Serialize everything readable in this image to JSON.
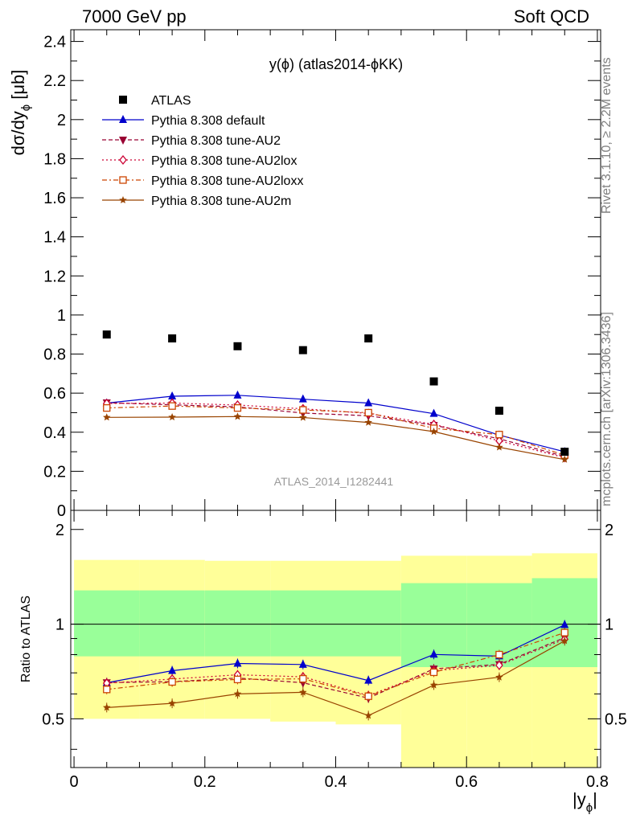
{
  "header": {
    "left": "7000 GeV pp",
    "right": "Soft QCD"
  },
  "side_labels": {
    "rivet": "Rivet 3.1.10, ≥ 2.2M events",
    "mcplots": "mcplots.cern.ch [arXiv:1306.3436]"
  },
  "chart_data": {
    "type": "scatter",
    "title": "y(ϕ) (atlas2014-ϕKK)",
    "analysis_label": "ATLAS_2014_I1282441",
    "ylabel": "dσ/dy",
    "ylabel_sub": "ϕ",
    "ylabel_unit": "[μb]",
    "ratio_ylabel": "Ratio to ATLAS",
    "xlabel": "|y",
    "xlabel_sub": "ϕ",
    "xlabel_end": "|",
    "xlim": [
      -0.005,
      0.805
    ],
    "ylim": [
      0,
      2.46
    ],
    "ratio_ylim": [
      0.35,
      2.3
    ],
    "x_ticks": [
      "0",
      "0.2",
      "0.4",
      "0.6",
      "0.8"
    ],
    "y_ticks": [
      "0",
      "0.2",
      "0.4",
      "0.6",
      "0.8",
      "1",
      "1.2",
      "1.4",
      "1.6",
      "1.8",
      "2",
      "2.2",
      "2.4"
    ],
    "ratio_ticks": [
      "0.5",
      "1",
      "2"
    ],
    "x": [
      0.05,
      0.15,
      0.25,
      0.35,
      0.45,
      0.55,
      0.65,
      0.75
    ],
    "bin_edges": [
      0.0,
      0.1,
      0.2,
      0.3,
      0.4,
      0.5,
      0.6,
      0.7,
      0.8
    ],
    "data_name": "ATLAS",
    "data_values": [
      0.9,
      0.88,
      0.84,
      0.82,
      0.88,
      0.66,
      0.51,
      0.3
    ],
    "band_inner_upper": [
      1.28,
      1.28,
      1.28,
      1.28,
      1.28,
      1.35,
      1.35,
      1.4
    ],
    "band_inner_lower": [
      0.79,
      0.79,
      0.79,
      0.79,
      0.79,
      0.73,
      0.73,
      0.73
    ],
    "band_outer_upper": [
      1.6,
      1.6,
      1.59,
      1.59,
      1.59,
      1.65,
      1.65,
      1.68
    ],
    "band_outer_lower": [
      0.5,
      0.5,
      0.5,
      0.49,
      0.48,
      0.35,
      0.35,
      0.35
    ],
    "series": [
      {
        "name": "Pythia 8.308 default",
        "color": "#0000cc",
        "dash": "",
        "marker": "triangle-up",
        "values": [
          0.549,
          0.584,
          0.589,
          0.569,
          0.549,
          0.495,
          0.385,
          0.3
        ],
        "ratio": [
          0.651,
          0.711,
          0.75,
          0.744,
          0.662,
          0.801,
          0.791,
          0.995
        ]
      },
      {
        "name": "Pythia 8.308 tune-AU2",
        "color": "#990033",
        "dash": "5,3",
        "marker": "triangle-down",
        "values": [
          0.551,
          0.54,
          0.53,
          0.498,
          0.484,
          0.436,
          0.366,
          0.276
        ],
        "ratio": [
          0.652,
          0.656,
          0.674,
          0.651,
          0.582,
          0.721,
          0.745,
          0.905
        ]
      },
      {
        "name": "Pythia 8.308 tune-AU2lox",
        "color": "#cc0033",
        "dash": "2,3",
        "marker": "diamond-open",
        "values": [
          0.547,
          0.549,
          0.539,
          0.52,
          0.496,
          0.44,
          0.356,
          0.27
        ],
        "ratio": [
          0.649,
          0.669,
          0.69,
          0.68,
          0.593,
          0.711,
          0.74,
          0.895
        ]
      },
      {
        "name": "Pythia 8.308 tune-AU2loxx",
        "color": "#cc4400",
        "dash": "6,3,2,3",
        "marker": "square-open",
        "values": [
          0.524,
          0.534,
          0.524,
          0.514,
          0.5,
          0.42,
          0.388,
          0.283
        ],
        "ratio": [
          0.62,
          0.655,
          0.667,
          0.67,
          0.59,
          0.703,
          0.8,
          0.94
        ]
      },
      {
        "name": "Pythia 8.308 tune-AU2m",
        "color": "#994400",
        "dash": "",
        "marker": "star",
        "values": [
          0.476,
          0.477,
          0.48,
          0.475,
          0.45,
          0.403,
          0.323,
          0.26
        ],
        "ratio": [
          0.543,
          0.56,
          0.6,
          0.607,
          0.512,
          0.64,
          0.678,
          0.885
        ]
      }
    ]
  }
}
